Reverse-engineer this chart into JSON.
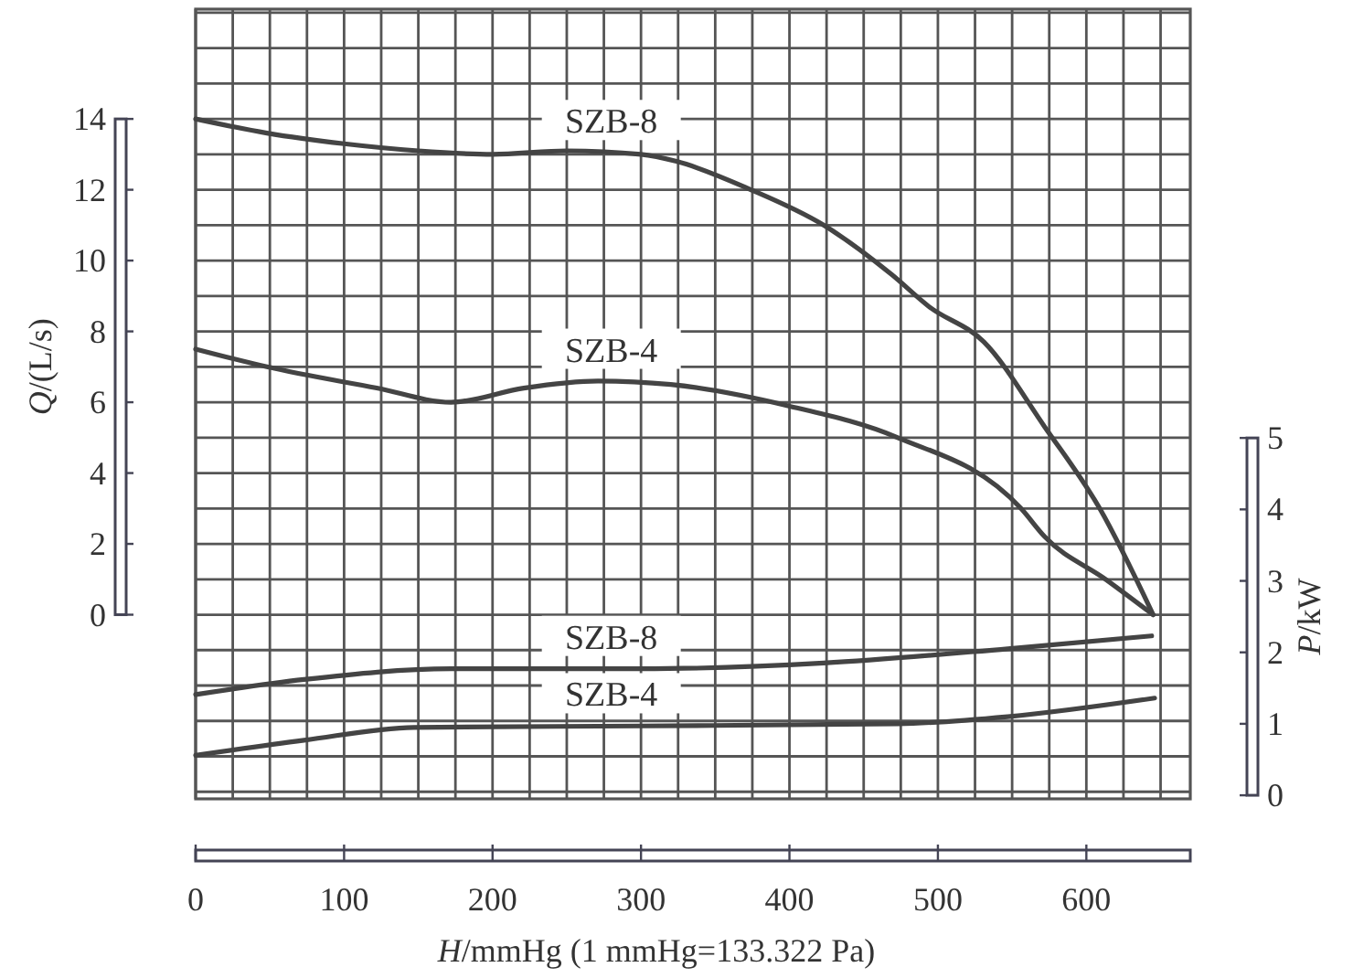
{
  "chart_data": {
    "type": "line",
    "xlabel": "H/mmHg (1 mmHg=133.322 Pa)",
    "ylabel": "Q/(L/s)",
    "y2label": "P/kW",
    "xlim": [
      0,
      670
    ],
    "ylim": [
      -5.2,
      17.1
    ],
    "y2lim": [
      -0.05,
      11.0
    ],
    "xticks": [
      0,
      {
        "value": 25,
        "label": null
      },
      {
        "value": 50,
        "label": null
      },
      {
        "value": 75,
        "label": null
      },
      100,
      {
        "value": 125,
        "label": null
      },
      {
        "value": 150,
        "label": null
      },
      {
        "value": 175,
        "label": null
      },
      200,
      {
        "value": 225,
        "label": null
      },
      {
        "value": 250,
        "label": null
      },
      {
        "value": 275,
        "label": null
      },
      300,
      {
        "value": 325,
        "label": null
      },
      {
        "value": 350,
        "label": null
      },
      {
        "value": 375,
        "label": null
      },
      400,
      {
        "value": 425,
        "label": null
      },
      {
        "value": 450,
        "label": null
      },
      {
        "value": 475,
        "label": null
      },
      500,
      {
        "value": 525,
        "label": null
      },
      {
        "value": 550,
        "label": null
      },
      {
        "value": 575,
        "label": null
      },
      600,
      {
        "value": 625,
        "label": null
      },
      {
        "value": 650,
        "label": null
      }
    ],
    "yticks": [
      {
        "value": -5,
        "label": null
      },
      {
        "value": -4,
        "label": null
      },
      {
        "value": -3,
        "label": null
      },
      {
        "value": -2,
        "label": null
      },
      {
        "value": -1,
        "label": null
      },
      0,
      {
        "value": 1,
        "label": null
      },
      2,
      {
        "value": 3,
        "label": null
      },
      4,
      {
        "value": 5,
        "label": null
      },
      6,
      {
        "value": 7,
        "label": null
      },
      8,
      {
        "value": 9,
        "label": null
      },
      10,
      {
        "value": 11,
        "label": null
      },
      12,
      {
        "value": 13,
        "label": null
      },
      14,
      {
        "value": 15,
        "label": null
      },
      {
        "value": 16,
        "label": null
      },
      {
        "value": 17,
        "label": null
      }
    ],
    "y2ticks": [
      0,
      1,
      2,
      3,
      4,
      5
    ],
    "grid": true,
    "series": [
      {
        "name": "SZB-8",
        "color": "#444444",
        "x": [
          0,
          48,
          100,
          150,
          200,
          250,
          300,
          324,
          374,
          423,
          469,
          494,
          531,
          572,
          609,
          645
        ],
        "values": [
          14.0,
          13.6,
          13.3,
          13.1,
          13.0,
          13.1,
          13.0,
          12.8,
          12.0,
          11.0,
          9.6,
          8.7,
          7.7,
          5.3,
          3.0,
          0.0
        ]
      },
      {
        "name": "SZB-4",
        "color": "#444444",
        "x": [
          0,
          48,
          122,
          172,
          221,
          271,
          320,
          399,
          473,
          556,
          572,
          613,
          645
        ],
        "values": [
          7.5,
          7.0,
          6.4,
          6.0,
          6.4,
          6.6,
          6.5,
          5.9,
          5.0,
          3.0,
          2.2,
          1.0,
          0.0
        ]
      },
      {
        "name": "SZB-8",
        "color": "#444444",
        "axis": "y2",
        "x": [
          0,
          73,
          172,
          300,
          423,
          547,
          644
        ],
        "values": [
          1.41,
          1.62,
          1.77,
          1.77,
          1.85,
          2.05,
          2.23
        ]
      },
      {
        "name": "SZB-4",
        "color": "#444444",
        "axis": "y2",
        "x": [
          0,
          73,
          147,
          300,
          473,
          547,
          646
        ],
        "values": [
          0.56,
          0.77,
          0.95,
          0.97,
          1.0,
          1.1,
          1.36
        ]
      }
    ]
  }
}
